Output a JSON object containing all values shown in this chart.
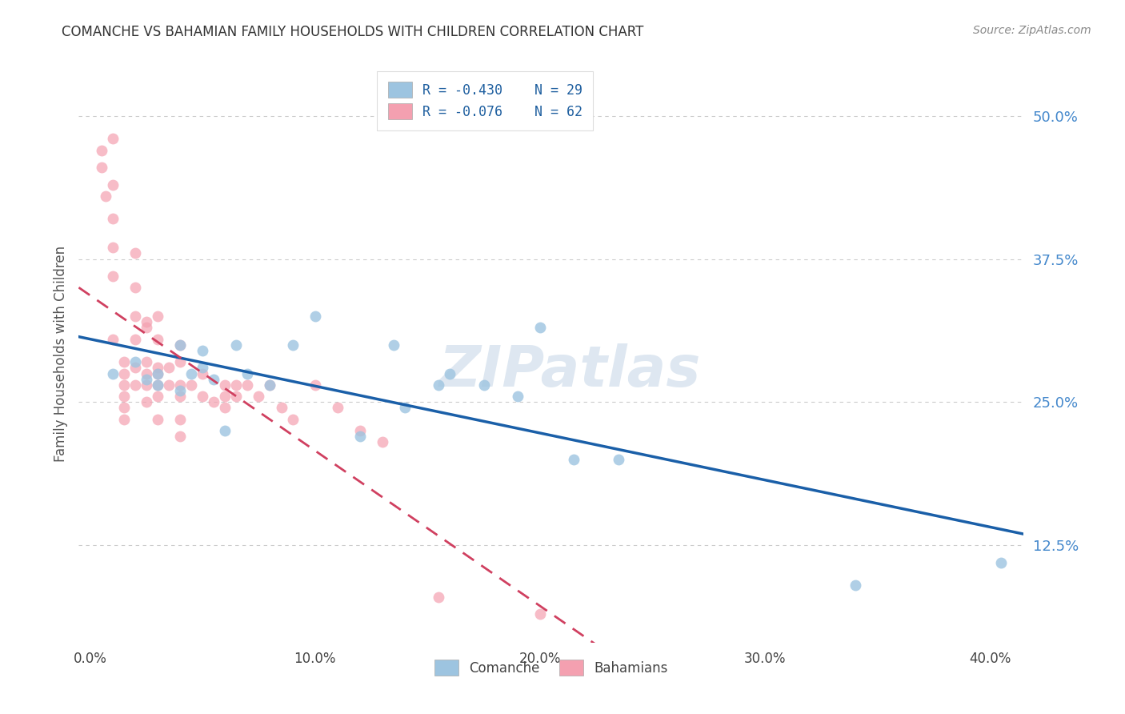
{
  "title": "COMANCHE VS BAHAMIAN FAMILY HOUSEHOLDS WITH CHILDREN CORRELATION CHART",
  "source": "Source: ZipAtlas.com",
  "ylabel": "Family Households with Children",
  "watermark": "ZIPatlas",
  "x_tick_labels": [
    "0.0%",
    "10.0%",
    "20.0%",
    "30.0%",
    "40.0%"
  ],
  "x_tick_vals": [
    0.0,
    0.1,
    0.2,
    0.3,
    0.4
  ],
  "y_tick_labels": [
    "12.5%",
    "25.0%",
    "37.5%",
    "50.0%"
  ],
  "y_tick_vals": [
    0.125,
    0.25,
    0.375,
    0.5
  ],
  "ylim": [
    0.04,
    0.545
  ],
  "xlim": [
    -0.005,
    0.415
  ],
  "comanche_color": "#9dc4e0",
  "bahamian_color": "#f4a0b0",
  "comanche_line_color": "#1a5fa8",
  "bahamian_line_color": "#d04060",
  "background_color": "#ffffff",
  "grid_color": "#cccccc",
  "title_color": "#333333",
  "source_color": "#888888",
  "comanche_x": [
    0.01,
    0.02,
    0.025,
    0.03,
    0.03,
    0.04,
    0.04,
    0.045,
    0.05,
    0.05,
    0.055,
    0.06,
    0.065,
    0.07,
    0.08,
    0.09,
    0.1,
    0.12,
    0.135,
    0.14,
    0.155,
    0.16,
    0.175,
    0.19,
    0.2,
    0.215,
    0.235,
    0.34,
    0.405
  ],
  "comanche_y": [
    0.275,
    0.285,
    0.27,
    0.275,
    0.265,
    0.3,
    0.26,
    0.275,
    0.295,
    0.28,
    0.27,
    0.225,
    0.3,
    0.275,
    0.265,
    0.3,
    0.325,
    0.22,
    0.3,
    0.245,
    0.265,
    0.275,
    0.265,
    0.255,
    0.315,
    0.2,
    0.2,
    0.09,
    0.11
  ],
  "bahamian_x": [
    0.005,
    0.005,
    0.007,
    0.01,
    0.01,
    0.01,
    0.01,
    0.01,
    0.01,
    0.015,
    0.015,
    0.015,
    0.015,
    0.015,
    0.015,
    0.02,
    0.02,
    0.02,
    0.02,
    0.02,
    0.02,
    0.025,
    0.025,
    0.025,
    0.025,
    0.025,
    0.025,
    0.03,
    0.03,
    0.03,
    0.03,
    0.03,
    0.03,
    0.03,
    0.035,
    0.035,
    0.04,
    0.04,
    0.04,
    0.04,
    0.04,
    0.04,
    0.045,
    0.05,
    0.05,
    0.055,
    0.06,
    0.06,
    0.06,
    0.065,
    0.065,
    0.07,
    0.075,
    0.08,
    0.085,
    0.09,
    0.1,
    0.11,
    0.12,
    0.13,
    0.155,
    0.2
  ],
  "bahamian_y": [
    0.47,
    0.455,
    0.43,
    0.48,
    0.44,
    0.41,
    0.385,
    0.36,
    0.305,
    0.285,
    0.275,
    0.265,
    0.255,
    0.245,
    0.235,
    0.38,
    0.35,
    0.325,
    0.305,
    0.28,
    0.265,
    0.32,
    0.315,
    0.285,
    0.275,
    0.265,
    0.25,
    0.325,
    0.305,
    0.28,
    0.275,
    0.265,
    0.255,
    0.235,
    0.28,
    0.265,
    0.3,
    0.285,
    0.265,
    0.255,
    0.235,
    0.22,
    0.265,
    0.275,
    0.255,
    0.25,
    0.265,
    0.255,
    0.245,
    0.265,
    0.255,
    0.265,
    0.255,
    0.265,
    0.245,
    0.235,
    0.265,
    0.245,
    0.225,
    0.215,
    0.08,
    0.065
  ],
  "legend_label_comanche": "R = -0.430    N = 29",
  "legend_label_bahamian": "R = -0.076    N = 62",
  "bottom_legend_comanche": "Comanche",
  "bottom_legend_bahamian": "Bahamians"
}
